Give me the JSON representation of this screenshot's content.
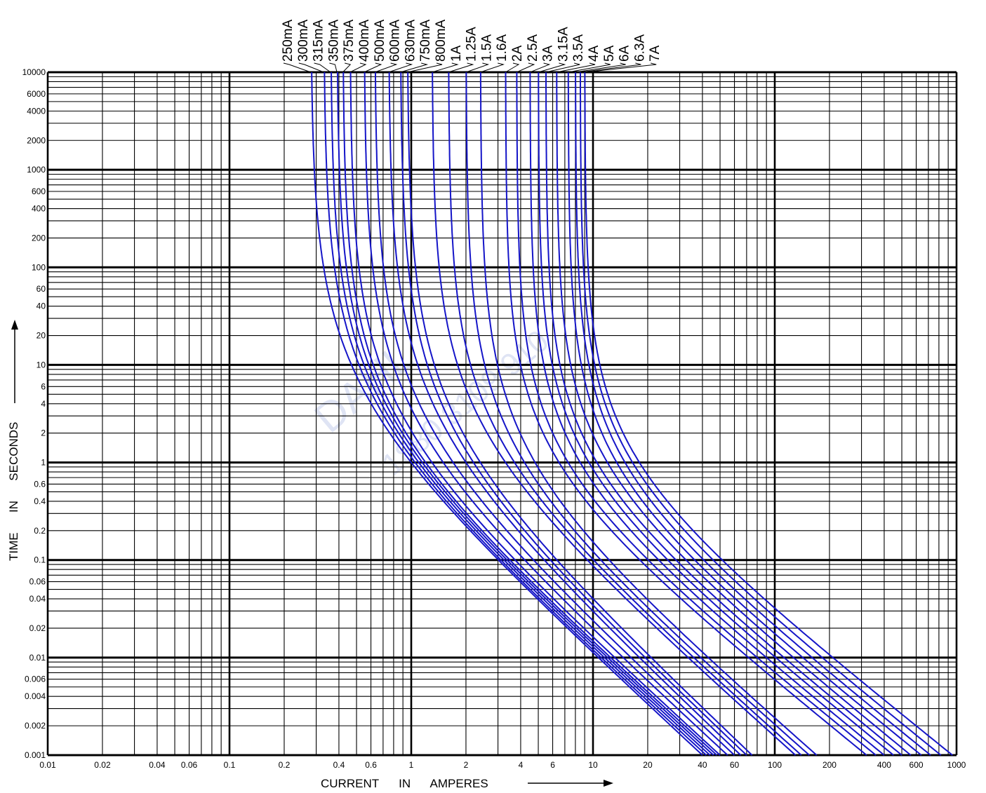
{
  "chart_data": {
    "type": "line",
    "title": "",
    "xlabel": "CURRENT      IN      AMPERES",
    "ylabel": "TIME      IN      SECONDS",
    "x_scale": "log",
    "y_scale": "log",
    "xlim": [
      0.01,
      1000
    ],
    "ylim": [
      0.001,
      10000
    ],
    "grid": true,
    "x_tick_labels": [
      "0.01",
      "0.02",
      "0.04",
      "0.06",
      "0.1",
      "0.2",
      "0.4",
      "0.6",
      "1",
      "2",
      "4",
      "6",
      "10",
      "20",
      "40",
      "60",
      "100",
      "200",
      "400",
      "600",
      "1000"
    ],
    "y_tick_labels": [
      "10000",
      "6000",
      "4000",
      "2000",
      "1000",
      "600",
      "400",
      "200",
      "100",
      "60",
      "40",
      "20",
      "10",
      "6",
      "4",
      "2",
      "1",
      "0.6",
      "0.4",
      "0.2",
      "0.1",
      "0.06",
      "0.04",
      "0.02",
      "0.01",
      "0.006",
      "0.004",
      "0.002",
      "0.001"
    ],
    "curve_color": "#1515c8",
    "series": [
      {
        "name": "250mA",
        "min_fuse_current": 0.28,
        "amps_at_1s": 1.0,
        "amps_at_0.001s": 40
      },
      {
        "name": "300mA",
        "min_fuse_current": 0.33,
        "amps_at_1s": 1.05,
        "amps_at_0.001s": 42
      },
      {
        "name": "315mA",
        "min_fuse_current": 0.36,
        "amps_at_1s": 1.1,
        "amps_at_0.001s": 44
      },
      {
        "name": "350mA",
        "min_fuse_current": 0.39,
        "amps_at_1s": 1.15,
        "amps_at_0.001s": 46
      },
      {
        "name": "375mA",
        "min_fuse_current": 0.42,
        "amps_at_1s": 1.2,
        "amps_at_0.001s": 48
      },
      {
        "name": "400mA",
        "min_fuse_current": 0.46,
        "amps_at_1s": 1.3,
        "amps_at_0.001s": 50
      },
      {
        "name": "500mA",
        "min_fuse_current": 0.55,
        "amps_at_1s": 1.5,
        "amps_at_0.001s": 55
      },
      {
        "name": "600mA",
        "min_fuse_current": 0.63,
        "amps_at_1s": 1.7,
        "amps_at_0.001s": 60
      },
      {
        "name": "630mA",
        "min_fuse_current": 0.75,
        "amps_at_1s": 2.0,
        "amps_at_0.001s": 65
      },
      {
        "name": "750mA",
        "min_fuse_current": 0.87,
        "amps_at_1s": 2.2,
        "amps_at_0.001s": 70
      },
      {
        "name": "800mA",
        "min_fuse_current": 0.95,
        "amps_at_1s": 2.4,
        "amps_at_0.001s": 75
      },
      {
        "name": "1A",
        "min_fuse_current": 1.3,
        "amps_at_1s": 3.3,
        "amps_at_0.001s": 130
      },
      {
        "name": "1.25A",
        "min_fuse_current": 1.6,
        "amps_at_1s": 3.7,
        "amps_at_0.001s": 140
      },
      {
        "name": "1.5A",
        "min_fuse_current": 2.0,
        "amps_at_1s": 4.2,
        "amps_at_0.001s": 155
      },
      {
        "name": "1.6A",
        "min_fuse_current": 2.4,
        "amps_at_1s": 4.8,
        "amps_at_0.001s": 170
      },
      {
        "name": "2A",
        "min_fuse_current": 3.3,
        "amps_at_1s": 6.5,
        "amps_at_0.001s": 320
      },
      {
        "name": "2.5A",
        "min_fuse_current": 3.8,
        "amps_at_1s": 7.3,
        "amps_at_0.001s": 360
      },
      {
        "name": "3A",
        "min_fuse_current": 4.5,
        "amps_at_1s": 8.5,
        "amps_at_0.001s": 400
      },
      {
        "name": "3.15A",
        "min_fuse_current": 5.0,
        "amps_at_1s": 9.5,
        "amps_at_0.001s": 450
      },
      {
        "name": "3.5A",
        "min_fuse_current": 5.5,
        "amps_at_1s": 10.5,
        "amps_at_0.001s": 500
      },
      {
        "name": "4A",
        "min_fuse_current": 6.3,
        "amps_at_1s": 12.0,
        "amps_at_0.001s": 560
      },
      {
        "name": "5A",
        "min_fuse_current": 7.3,
        "amps_at_1s": 13.5,
        "amps_at_0.001s": 640
      },
      {
        "name": "6A",
        "min_fuse_current": 8.0,
        "amps_at_1s": 15.0,
        "amps_at_0.001s": 720
      },
      {
        "name": "6.3A",
        "min_fuse_current": 8.5,
        "amps_at_1s": 16.5,
        "amps_at_0.001s": 820
      },
      {
        "name": "7A",
        "min_fuse_current": 9.0,
        "amps_at_1s": 18.0,
        "amps_at_0.001s": 950
      }
    ]
  },
  "watermark": {
    "logo_text": "DAHL",
    "phone_text": "1880 3109 910"
  }
}
